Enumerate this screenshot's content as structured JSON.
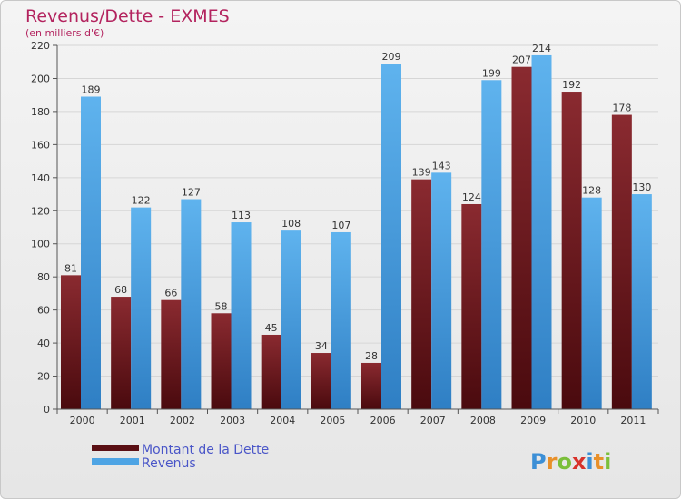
{
  "chart_data": {
    "type": "bar",
    "title": "Revenus/Dette - EXMES",
    "subtitle": "(en milliers d'€)",
    "categories": [
      "2000",
      "2001",
      "2002",
      "2003",
      "2004",
      "2005",
      "2006",
      "2007",
      "2008",
      "2009",
      "2010",
      "2011"
    ],
    "series": [
      {
        "name": "Montant de la Dette",
        "color": "#7a1f24",
        "values": [
          81,
          68,
          66,
          58,
          45,
          34,
          28,
          139,
          124,
          207,
          192,
          178
        ]
      },
      {
        "name": "Revenus",
        "color": "#4ea4e4",
        "values": [
          189,
          122,
          127,
          113,
          108,
          107,
          209,
          143,
          199,
          214,
          128,
          130
        ]
      }
    ],
    "ylim": [
      0,
      220
    ],
    "yticks": [
      0,
      20,
      40,
      60,
      80,
      100,
      120,
      140,
      160,
      180,
      200,
      220
    ],
    "grid": true,
    "legend_position": "bottom-left"
  },
  "branding": {
    "logo_text": "Proxiti"
  }
}
